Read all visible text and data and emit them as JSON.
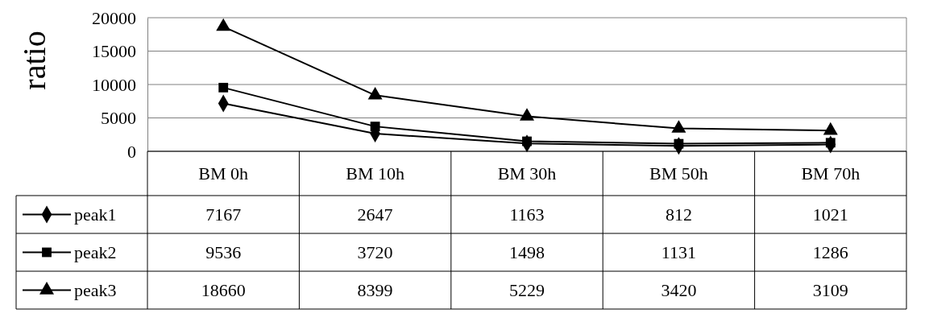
{
  "chart_data": {
    "type": "line",
    "ylabel": "ratio",
    "categories": [
      "BM 0h",
      "BM 10h",
      "BM 30h",
      "BM 50h",
      "BM 70h"
    ],
    "series": [
      {
        "name": "peak1",
        "color": "#000000",
        "marker": "diamond",
        "values": [
          7167,
          2647,
          1163,
          812,
          1021
        ]
      },
      {
        "name": "peak2",
        "color": "#000000",
        "marker": "square",
        "values": [
          9536,
          3720,
          1498,
          1131,
          1286
        ]
      },
      {
        "name": "peak3",
        "color": "#000000",
        "marker": "triangle",
        "values": [
          18660,
          8399,
          5229,
          3420,
          3109
        ]
      }
    ],
    "ylim": [
      0,
      20000
    ],
    "yticks": [
      0,
      5000,
      10000,
      15000,
      20000
    ],
    "grid": "y",
    "legend": "bottom",
    "line_style": "solid",
    "data_labels": true
  }
}
